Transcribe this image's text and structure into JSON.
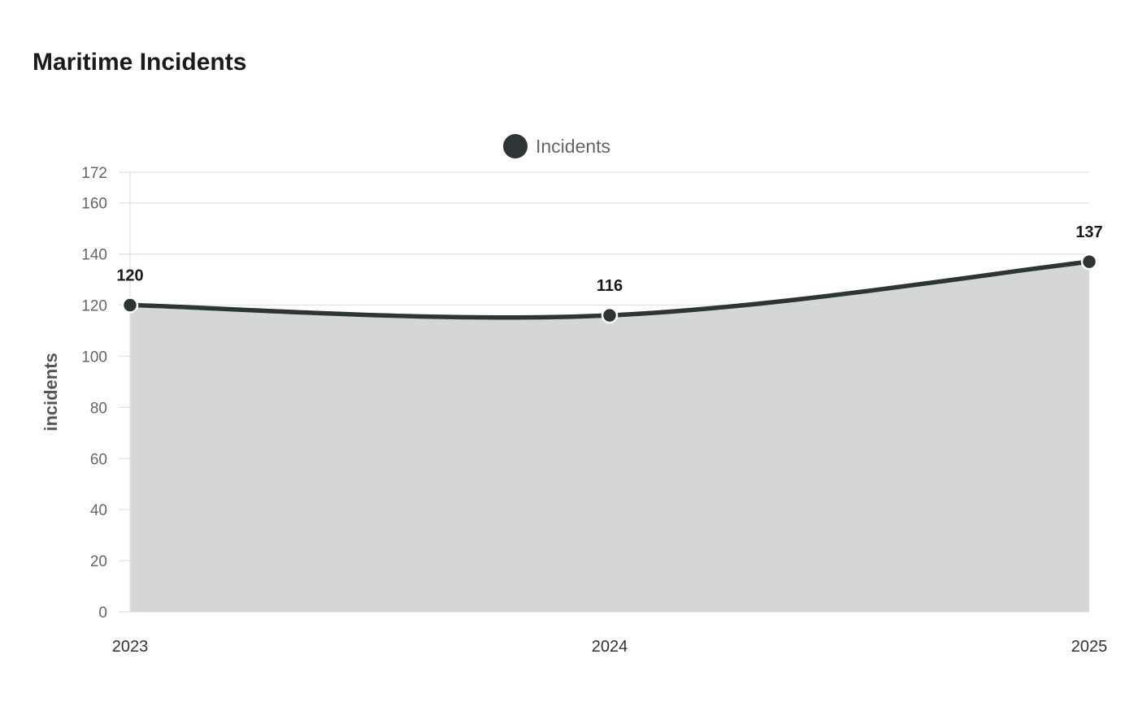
{
  "chart_data": {
    "type": "area",
    "title": "Maritime Incidents",
    "ylabel": "incidents",
    "xlabel": "",
    "categories": [
      "2023",
      "2024",
      "2025"
    ],
    "series": [
      {
        "name": "Incidents",
        "values": [
          120,
          116,
          137
        ]
      }
    ],
    "ylim": [
      0,
      172
    ],
    "yticks": [
      0,
      20,
      40,
      60,
      80,
      100,
      120,
      140,
      160,
      172
    ],
    "grid": true,
    "legend_position": "top-center",
    "colors": {
      "line": "#2e3536",
      "fill": "#d5d7d6",
      "grid": "#e0e0e0",
      "axis": "#cccccc"
    }
  }
}
